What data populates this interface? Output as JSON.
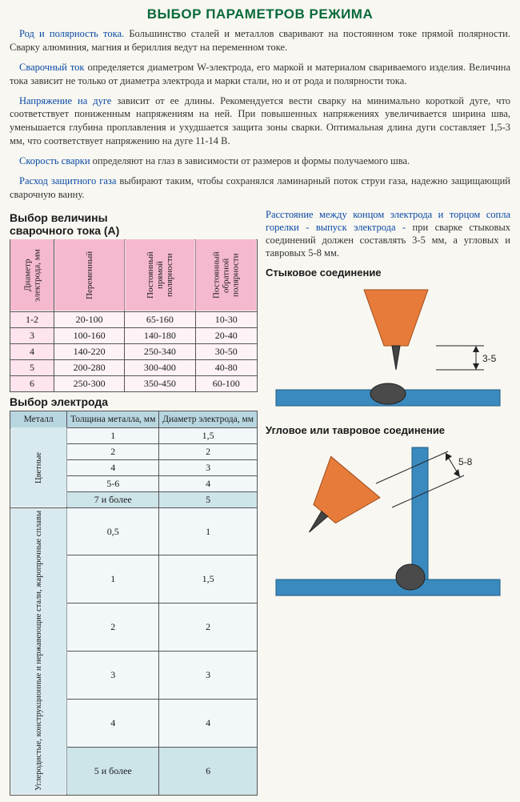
{
  "title": "ВЫБОР ПАРАМЕТРОВ РЕЖИМА",
  "paras": [
    {
      "term": "Род и полярность тока.",
      "body": "Большинство сталей и металлов сваривают на постоянном токе прямой полярности. Сварку алюминия, магния и бериллия ведут на переменном токе."
    },
    {
      "term": "Сварочный ток",
      "body": "определяется диаметром W-электрода, его маркой и материалом свариваемого изделия. Величина тока зависит не только от диаметра электрода и марки стали, но и от рода и полярности тока."
    },
    {
      "term": "Напряжение на дуге",
      "body": "зависит от ее длины. Рекомендуется вести сварку на минимально короткой дуге, что соответствует пониженным напряжениям на ней. При повышенных напряжениях увеличивается ширина шва, уменьшается глубина проплавления и ухудшается защита зоны сварки. Оптимальная длина дуги составляет 1,5-3 мм, что соответствует напряжению на дуге 11-14 В."
    },
    {
      "term": "Скорость сварки",
      "body": "определяют на глаз в зависимости от размеров и формы получаемого шва."
    },
    {
      "term": "Расход защитного газа",
      "body": "выбирают таким, чтобы сохранялся ламинарный поток струи газа, надежно защищающий сварочную ванну."
    }
  ],
  "t1": {
    "title": "Выбор величины\nсварочного тока (А)",
    "headers": [
      "Диаметр электрода, мм",
      "Переменный",
      "Постоянный прямой полярности",
      "Постоянный обратной полярности"
    ],
    "rows": [
      [
        "1-2",
        "20-100",
        "65-160",
        "10-30"
      ],
      [
        "3",
        "100-160",
        "140-180",
        "20-40"
      ],
      [
        "4",
        "140-220",
        "250-340",
        "30-50"
      ],
      [
        "5",
        "200-280",
        "300-400",
        "40-80"
      ],
      [
        "6",
        "250-300",
        "350-450",
        "60-100"
      ]
    ]
  },
  "t2": {
    "title": "Выбор электрода",
    "headers": [
      "Металл",
      "Толщина металла, мм",
      "Диаметр электрода, мм"
    ],
    "group1": "Цветные",
    "group2": "Углеродистые, конструкционные и нержавеющие стали, жаропрочные сплавы",
    "rows1": [
      [
        "1",
        "1,5"
      ],
      [
        "2",
        "2"
      ],
      [
        "4",
        "3"
      ],
      [
        "5-6",
        "4"
      ],
      [
        "7 и более",
        "5"
      ]
    ],
    "rows2": [
      [
        "0,5",
        "1"
      ],
      [
        "1",
        "1,5"
      ],
      [
        "2",
        "2"
      ],
      [
        "3",
        "3"
      ],
      [
        "4",
        "4"
      ],
      [
        "5 и более",
        "6"
      ]
    ]
  },
  "right": {
    "lead_term": "Расстояние между концом электрода и торцом сопла горелки - выпуск электрода -",
    "lead_plain": "при сварке стыковых соединений должен составлять 3-5 мм, а угловых и тавровых 5-8 мм.",
    "d1_label": "Стыковое соединение",
    "d1_dim": "3-5",
    "d2_label": "Угловое или тавровое соединение",
    "d2_dim": "5-8"
  },
  "colors": {
    "nozzle": "#e77c3a",
    "electrode_tip": "#444444",
    "metal": "#3a8abf",
    "bead": "#4a4a4a"
  }
}
